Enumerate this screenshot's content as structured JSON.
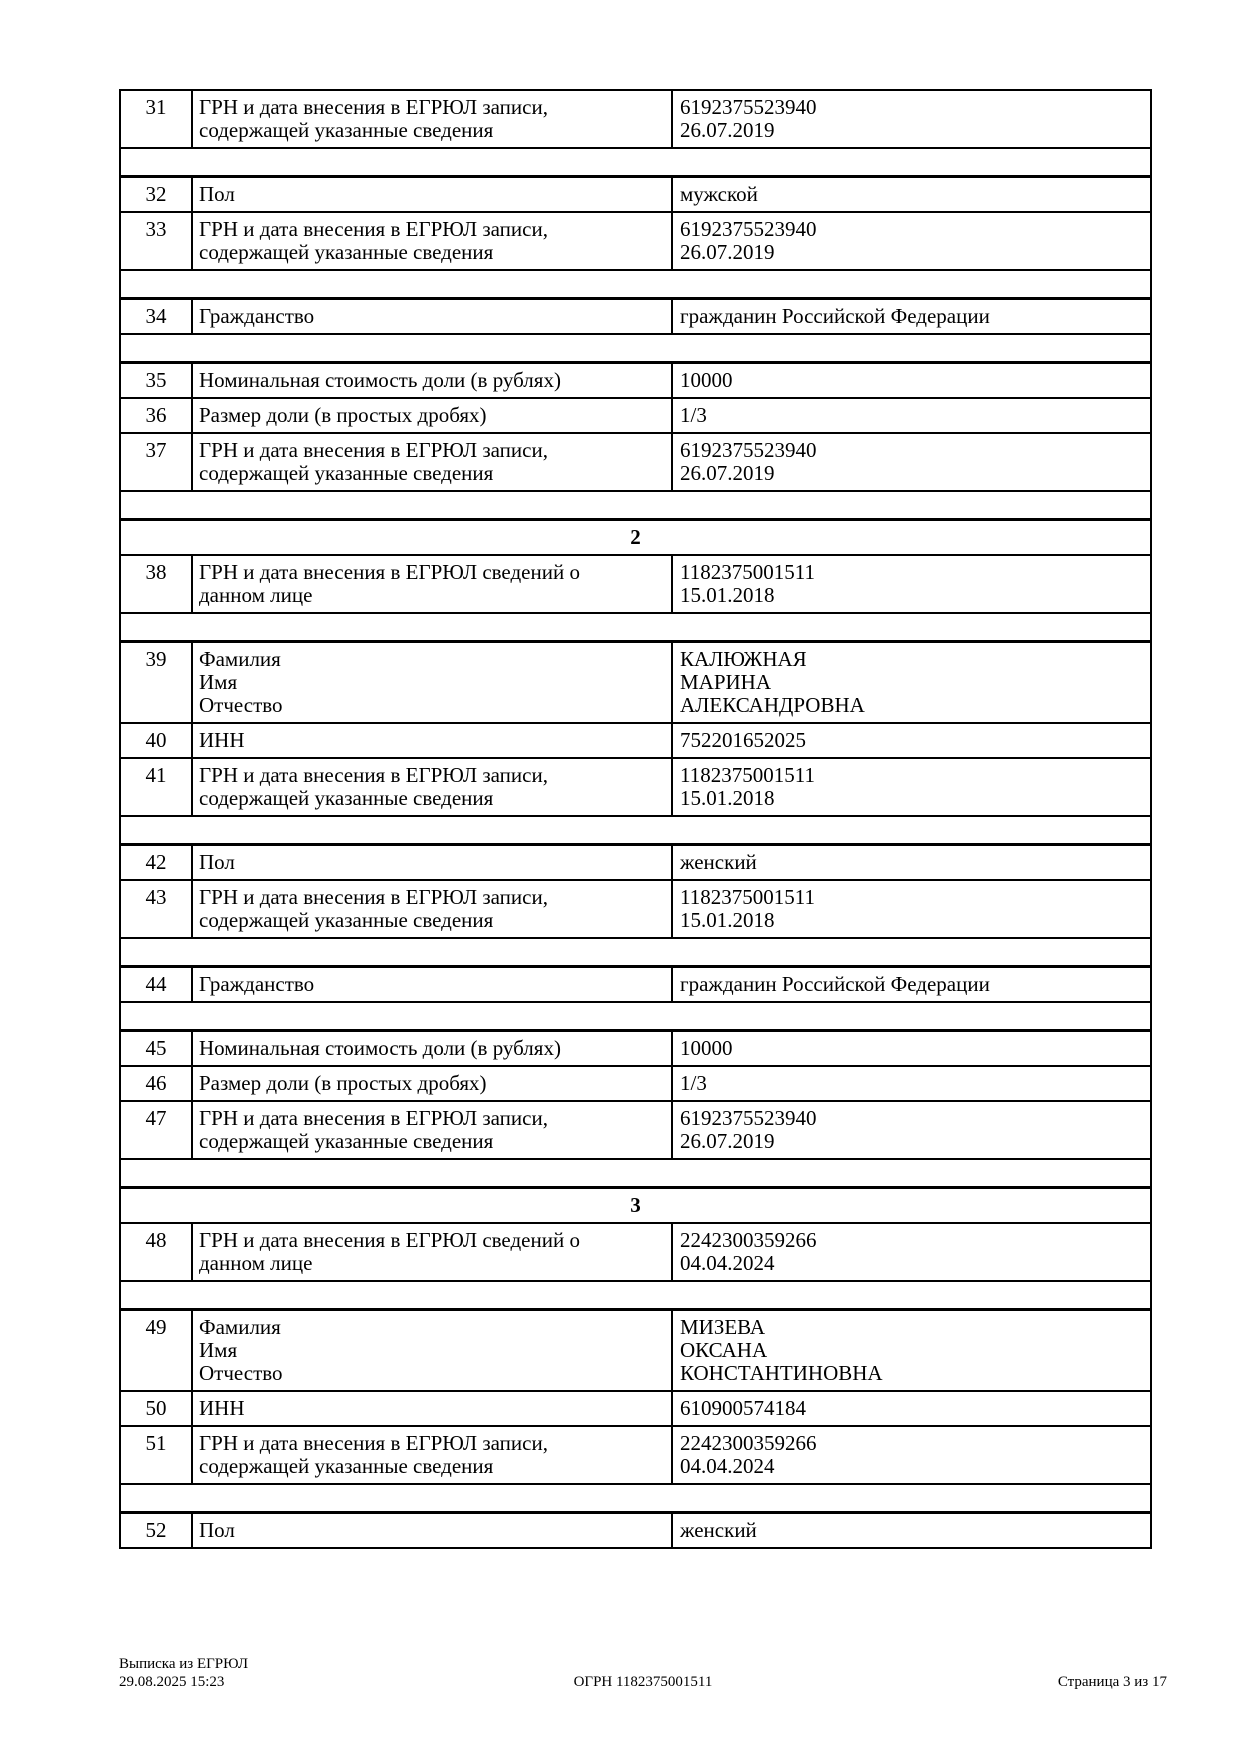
{
  "table": {
    "rows": [
      {
        "type": "data",
        "num": "31",
        "label": [
          "ГРН и дата внесения в ЕГРЮЛ записи,",
          "содержащей указанные сведения"
        ],
        "value": [
          "6192375523940",
          "26.07.2019"
        ]
      },
      {
        "type": "spacer"
      },
      {
        "type": "data",
        "num": "32",
        "label": [
          "Пол"
        ],
        "value": [
          "мужской"
        ]
      },
      {
        "type": "data",
        "num": "33",
        "label": [
          "ГРН и дата внесения в ЕГРЮЛ записи,",
          "содержащей указанные сведения"
        ],
        "value": [
          "6192375523940",
          "26.07.2019"
        ]
      },
      {
        "type": "spacer"
      },
      {
        "type": "data",
        "num": "34",
        "label": [
          "Гражданство"
        ],
        "value": [
          "гражданин Российской Федерации"
        ]
      },
      {
        "type": "spacer"
      },
      {
        "type": "data",
        "num": "35",
        "label": [
          "Номинальная стоимость доли (в рублях)"
        ],
        "value": [
          "10000"
        ]
      },
      {
        "type": "data",
        "num": "36",
        "label": [
          "Размер доли (в простых дробях)"
        ],
        "value": [
          "1/3"
        ]
      },
      {
        "type": "data",
        "num": "37",
        "label": [
          "ГРН и дата внесения в ЕГРЮЛ записи,",
          "содержащей указанные сведения"
        ],
        "value": [
          "6192375523940",
          "26.07.2019"
        ]
      },
      {
        "type": "spacer"
      },
      {
        "type": "section",
        "title": "2"
      },
      {
        "type": "data",
        "num": "38",
        "label": [
          "ГРН и дата внесения в ЕГРЮЛ сведений о",
          "данном лице"
        ],
        "value": [
          "1182375001511",
          "15.01.2018"
        ]
      },
      {
        "type": "spacer"
      },
      {
        "type": "data",
        "num": "39",
        "label": [
          "Фамилия",
          "Имя",
          "Отчество"
        ],
        "value": [
          "КАЛЮЖНАЯ",
          "МАРИНА",
          "АЛЕКСАНДРОВНА"
        ]
      },
      {
        "type": "data",
        "num": "40",
        "label": [
          "ИНН"
        ],
        "value": [
          "752201652025"
        ]
      },
      {
        "type": "data",
        "num": "41",
        "label": [
          "ГРН и дата внесения в ЕГРЮЛ записи,",
          "содержащей указанные сведения"
        ],
        "value": [
          "1182375001511",
          "15.01.2018"
        ]
      },
      {
        "type": "spacer"
      },
      {
        "type": "data",
        "num": "42",
        "label": [
          "Пол"
        ],
        "value": [
          "женский"
        ]
      },
      {
        "type": "data",
        "num": "43",
        "label": [
          "ГРН и дата внесения в ЕГРЮЛ записи,",
          "содержащей указанные сведения"
        ],
        "value": [
          "1182375001511",
          "15.01.2018"
        ]
      },
      {
        "type": "spacer"
      },
      {
        "type": "data",
        "num": "44",
        "label": [
          "Гражданство"
        ],
        "value": [
          "гражданин Российской Федерации"
        ]
      },
      {
        "type": "spacer"
      },
      {
        "type": "data",
        "num": "45",
        "label": [
          "Номинальная стоимость доли (в рублях)"
        ],
        "value": [
          "10000"
        ]
      },
      {
        "type": "data",
        "num": "46",
        "label": [
          "Размер доли (в простых дробях)"
        ],
        "value": [
          "1/3"
        ]
      },
      {
        "type": "data",
        "num": "47",
        "label": [
          "ГРН и дата внесения в ЕГРЮЛ записи,",
          "содержащей указанные сведения"
        ],
        "value": [
          "6192375523940",
          "26.07.2019"
        ]
      },
      {
        "type": "spacer"
      },
      {
        "type": "section",
        "title": "3"
      },
      {
        "type": "data",
        "num": "48",
        "label": [
          "ГРН и дата внесения в ЕГРЮЛ сведений о",
          "данном лице"
        ],
        "value": [
          "2242300359266",
          "04.04.2024"
        ]
      },
      {
        "type": "spacer"
      },
      {
        "type": "data",
        "num": "49",
        "label": [
          "Фамилия",
          "Имя",
          "Отчество"
        ],
        "value": [
          "МИЗЕВА",
          "ОКСАНА",
          "КОНСТАНТИНОВНА"
        ]
      },
      {
        "type": "data",
        "num": "50",
        "label": [
          "ИНН"
        ],
        "value": [
          "610900574184"
        ]
      },
      {
        "type": "data",
        "num": "51",
        "label": [
          "ГРН и дата внесения в ЕГРЮЛ записи,",
          "содержащей указанные сведения"
        ],
        "value": [
          "2242300359266",
          "04.04.2024"
        ]
      },
      {
        "type": "spacer"
      },
      {
        "type": "data",
        "num": "52",
        "label": [
          "Пол"
        ],
        "value": [
          "женский"
        ]
      }
    ]
  },
  "footer": {
    "doc_title": "Выписка из ЕГРЮЛ",
    "timestamp": "29.08.2025 15:23",
    "ogrn": "ОГРН 1182375001511",
    "page_info": "Страница 3 из 17"
  }
}
